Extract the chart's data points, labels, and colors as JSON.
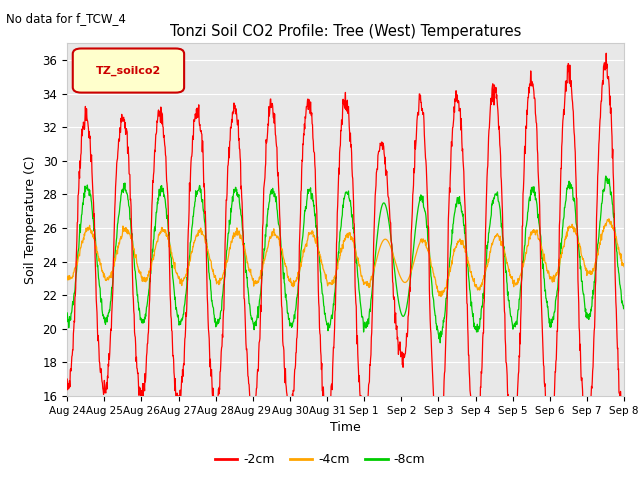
{
  "title": "Tonzi Soil CO2 Profile: Tree (West) Temperatures",
  "subtitle": "No data for f_TCW_4",
  "xlabel": "Time",
  "ylabel": "Soil Temperature (C)",
  "ylim": [
    16,
    37
  ],
  "yticks": [
    16,
    18,
    20,
    22,
    24,
    26,
    28,
    30,
    32,
    34,
    36
  ],
  "xtick_labels": [
    "Aug 24",
    "Aug 25",
    "Aug 26",
    "Aug 27",
    "Aug 28",
    "Aug 29",
    "Aug 30",
    "Aug 31",
    "Sep 1",
    "Sep 2",
    "Sep 3",
    "Sep 4",
    "Sep 5",
    "Sep 6",
    "Sep 7",
    "Sep 8"
  ],
  "legend_label": "TZ_soilco2",
  "series_labels": [
    "-2cm",
    "-4cm",
    "-8cm"
  ],
  "series_colors": [
    "#ff0000",
    "#ffa500",
    "#00cc00"
  ],
  "figure_bg": "#ffffff",
  "plot_bg": "#e8e8e8",
  "grid_color": "#ffffff",
  "n_days": 15,
  "pts_per_day": 96
}
